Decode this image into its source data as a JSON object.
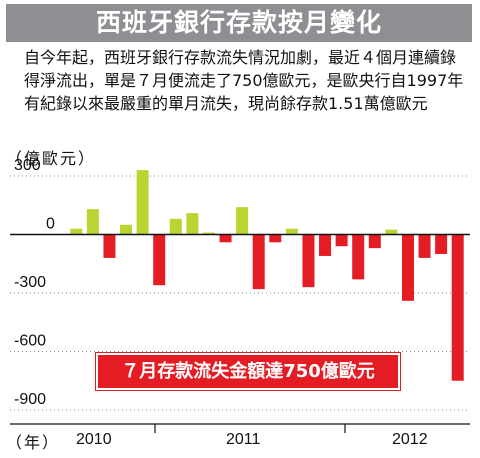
{
  "title": "西班牙銀行存款按月變化",
  "description": "自今年起，西班牙銀行存款流失情況加劇，最近４個月連續錄得淨流出，單是７月便流走了750億歐元，是歐央行自1997年有紀錄以來最嚴重的單月流失，現尚餘存款1.51萬億歐元",
  "y_unit_label": "（億歐元）",
  "x_unit_label": "（年）",
  "callout": "７月存款流失金額達750億歐元",
  "colors": {
    "positive": "#b9d532",
    "negative": "#e41c24",
    "title_bg": "#8e8f92"
  },
  "chart_data": {
    "type": "bar",
    "ylim": [
      -900,
      300
    ],
    "yticks": [
      300,
      0,
      -300,
      -600,
      -900
    ],
    "ytick_labels": [
      "300",
      "0",
      "-300",
      "-600",
      "-900"
    ],
    "year_labels": [
      "2010",
      "2011",
      "2012"
    ],
    "values": [
      30,
      130,
      -120,
      50,
      330,
      -260,
      80,
      110,
      10,
      -40,
      140,
      -280,
      -40,
      30,
      -270,
      -110,
      -60,
      -230,
      -70,
      25,
      -340,
      -120,
      -100,
      -750
    ],
    "grid": true
  }
}
